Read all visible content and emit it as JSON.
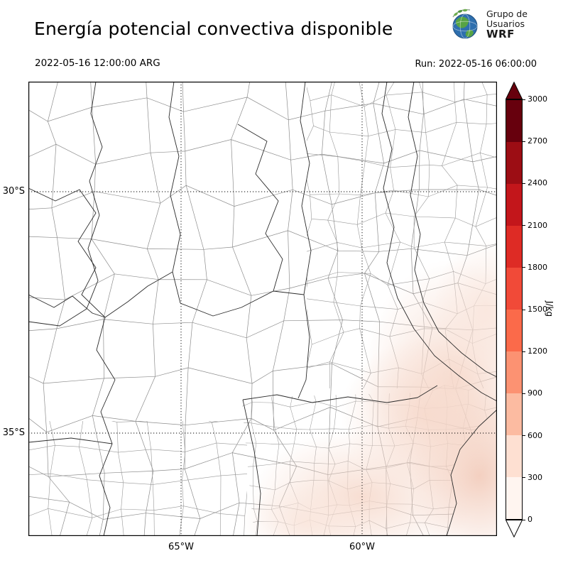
{
  "header": {
    "title": "Energía potencial convectiva disponible",
    "valid_time": "2022-05-16 12:00:00 ARG",
    "run_label": "Run: 2022-05-16 06:00:00",
    "logo": {
      "line1": "Grupo de",
      "line2": "Usuarios",
      "line3": "WRF"
    }
  },
  "map": {
    "lat_labels": [
      {
        "text": "30°S"
      },
      {
        "text": "35°S"
      }
    ],
    "lon_labels": [
      {
        "text": "65°W"
      },
      {
        "text": "60°W"
      }
    ],
    "shading_colors": [
      "#fdeee7",
      "#f6d8ca",
      "#f2cbba"
    ]
  },
  "colorbar": {
    "unit": "J/kg",
    "ticks": [
      "3000",
      "2700",
      "2400",
      "2100",
      "1800",
      "1500",
      "1200",
      "900",
      "600",
      "300",
      "0"
    ],
    "colors": [
      "#fff5f0",
      "#fee0d2",
      "#fcbba1",
      "#fc9272",
      "#fb6a4a",
      "#f14a38",
      "#de2b25",
      "#c3161b",
      "#9c0d14",
      "#67000d"
    ],
    "under_color": "#ffffff",
    "over_color": "#67000d"
  }
}
